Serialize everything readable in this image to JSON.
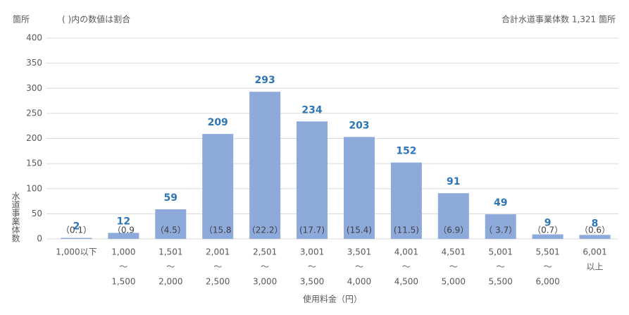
{
  "chart_data": {
    "type": "bar",
    "y_unit": "箇所",
    "note": "( )内の数値は割合",
    "total_label": "合計水道事業体数 1,321 箇所",
    "y_label": "水道事業体数",
    "x_label": "使用料金（円）",
    "categories": [
      [
        "1,000以下"
      ],
      [
        "1,000",
        "～",
        "1,500"
      ],
      [
        "1,501",
        "～",
        "2,000"
      ],
      [
        "2,001",
        "～",
        "2,500"
      ],
      [
        "2,501",
        "～",
        "3,000"
      ],
      [
        "3,001",
        "～",
        "3,500"
      ],
      [
        "3,501",
        "～",
        "4,000"
      ],
      [
        "4,001",
        "～",
        "4,500"
      ],
      [
        "4,501",
        "～",
        "5,000"
      ],
      [
        "5,001",
        "～",
        "5,500"
      ],
      [
        "5,501",
        "～",
        "6,000"
      ],
      [
        "6,001",
        "以上"
      ]
    ],
    "values": [
      2,
      12,
      59,
      209,
      293,
      234,
      203,
      152,
      91,
      49,
      9,
      8
    ],
    "share_labels": [
      "（0.1）",
      "（0.9",
      "（4.5）",
      "（15.8",
      "（22.2）",
      "(17.7)",
      "(15.4)",
      "(11.5)",
      "（6.9）",
      "（ 3.7）",
      "（0.7）",
      "（0.6）"
    ],
    "color": "#8eaadb",
    "ylim": [
      0,
      400
    ],
    "yticks": [
      0,
      50,
      100,
      150,
      200,
      250,
      300,
      350,
      400
    ],
    "grid": true
  }
}
